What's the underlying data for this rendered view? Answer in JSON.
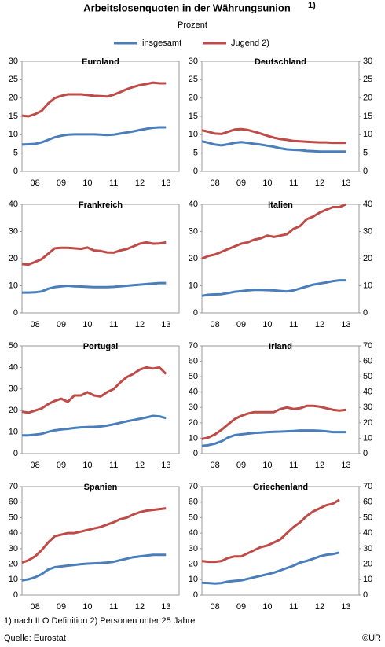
{
  "header": {
    "title": "Arbeitslosenquoten in der Währungsunion",
    "title_note": "1)",
    "subtitle": "Prozent"
  },
  "footer": {
    "note": "1) nach ILO Definition 2) Personen unter 25 Jahre",
    "source": "Quelle: Eurostat",
    "copyright": "©UR"
  },
  "chart_data": [
    {
      "type": "line",
      "title": "Euroland",
      "x": [
        8,
        8.25,
        8.5,
        8.75,
        9,
        9.25,
        9.5,
        9.75,
        10,
        10.25,
        10.5,
        10.75,
        11,
        11.25,
        11.5,
        11.75,
        12,
        12.25,
        12.5,
        12.75,
        13,
        13.25,
        13.5
      ],
      "xlim": [
        8,
        14
      ],
      "xticks": [
        {
          "value": 8.5,
          "label": "08"
        },
        {
          "value": 9.5,
          "label": "09"
        },
        {
          "value": 10.5,
          "label": "10"
        },
        {
          "value": 11.5,
          "label": "11"
        },
        {
          "value": 12.5,
          "label": "12"
        },
        {
          "value": 13.5,
          "label": "13"
        }
      ],
      "ylim": [
        0,
        30
      ],
      "yticks": [
        0,
        5,
        10,
        15,
        20,
        25,
        30
      ],
      "series": [
        {
          "name": "insgesamt",
          "color": "#4a7ebb",
          "values": [
            7.3,
            7.4,
            7.5,
            7.9,
            8.6,
            9.3,
            9.7,
            10.0,
            10.1,
            10.1,
            10.1,
            10.1,
            10.0,
            9.9,
            10.0,
            10.3,
            10.6,
            10.9,
            11.3,
            11.6,
            11.9,
            12.0,
            12.0
          ]
        },
        {
          "name": "Jugend 2)",
          "color": "#be4b48",
          "values": [
            15.2,
            15.0,
            15.6,
            16.5,
            18.5,
            20.0,
            20.6,
            21.0,
            21.0,
            21.0,
            20.8,
            20.6,
            20.5,
            20.4,
            20.9,
            21.6,
            22.4,
            23.0,
            23.5,
            23.8,
            24.2,
            24.0,
            24.0
          ]
        }
      ]
    },
    {
      "type": "line",
      "title": "Deutschland",
      "x": [
        8,
        8.25,
        8.5,
        8.75,
        9,
        9.25,
        9.5,
        9.75,
        10,
        10.25,
        10.5,
        10.75,
        11,
        11.25,
        11.5,
        11.75,
        12,
        12.25,
        12.5,
        12.75,
        13,
        13.25,
        13.5
      ],
      "xlim": [
        8,
        14
      ],
      "xticks": [
        {
          "value": 8.5,
          "label": "08"
        },
        {
          "value": 9.5,
          "label": "09"
        },
        {
          "value": 10.5,
          "label": "10"
        },
        {
          "value": 11.5,
          "label": "11"
        },
        {
          "value": 12.5,
          "label": "12"
        },
        {
          "value": 13.5,
          "label": "13"
        }
      ],
      "ylim": [
        0,
        30
      ],
      "yticks": [
        0,
        5,
        10,
        15,
        20,
        25,
        30
      ],
      "series": [
        {
          "name": "insgesamt",
          "color": "#4a7ebb",
          "values": [
            8.2,
            7.8,
            7.3,
            7.1,
            7.4,
            7.8,
            8.0,
            7.8,
            7.5,
            7.3,
            7.0,
            6.7,
            6.3,
            6.0,
            5.9,
            5.8,
            5.6,
            5.5,
            5.4,
            5.4,
            5.4,
            5.4,
            5.4
          ]
        },
        {
          "name": "Jugend 2)",
          "color": "#be4b48",
          "values": [
            11.2,
            10.8,
            10.3,
            10.2,
            10.8,
            11.4,
            11.5,
            11.3,
            10.8,
            10.3,
            9.7,
            9.2,
            8.8,
            8.6,
            8.3,
            8.2,
            8.1,
            8.0,
            7.9,
            7.9,
            7.8,
            7.8,
            7.8
          ]
        }
      ]
    },
    {
      "type": "line",
      "title": "Frankreich",
      "x": [
        8,
        8.25,
        8.5,
        8.75,
        9,
        9.25,
        9.5,
        9.75,
        10,
        10.25,
        10.5,
        10.75,
        11,
        11.25,
        11.5,
        11.75,
        12,
        12.25,
        12.5,
        12.75,
        13,
        13.25,
        13.5
      ],
      "xlim": [
        8,
        14
      ],
      "xticks": [
        {
          "value": 8.5,
          "label": "08"
        },
        {
          "value": 9.5,
          "label": "09"
        },
        {
          "value": 10.5,
          "label": "10"
        },
        {
          "value": 11.5,
          "label": "11"
        },
        {
          "value": 12.5,
          "label": "12"
        },
        {
          "value": 13.5,
          "label": "13"
        }
      ],
      "ylim": [
        0,
        40
      ],
      "yticks": [
        0,
        10,
        20,
        30,
        40
      ],
      "series": [
        {
          "name": "insgesamt",
          "color": "#4a7ebb",
          "values": [
            7.5,
            7.5,
            7.6,
            7.9,
            8.9,
            9.5,
            9.8,
            10.0,
            9.8,
            9.7,
            9.6,
            9.5,
            9.5,
            9.5,
            9.6,
            9.8,
            10.0,
            10.2,
            10.4,
            10.6,
            10.8,
            11.0,
            11.0
          ]
        },
        {
          "name": "Jugend 2)",
          "color": "#be4b48",
          "values": [
            18,
            17.8,
            18.8,
            19.8,
            21.8,
            23.8,
            24,
            24,
            23.8,
            23.6,
            24.1,
            23,
            22.8,
            22.3,
            22.2,
            23,
            23.5,
            24.5,
            25.5,
            26,
            25.5,
            25.6,
            26
          ]
        }
      ]
    },
    {
      "type": "line",
      "title": "Italien",
      "x": [
        8,
        8.25,
        8.5,
        8.75,
        9,
        9.25,
        9.5,
        9.75,
        10,
        10.25,
        10.5,
        10.75,
        11,
        11.25,
        11.5,
        11.75,
        12,
        12.25,
        12.5,
        12.75,
        13,
        13.25,
        13.5
      ],
      "xlim": [
        8,
        14
      ],
      "xticks": [
        {
          "value": 8.5,
          "label": "08"
        },
        {
          "value": 9.5,
          "label": "09"
        },
        {
          "value": 10.5,
          "label": "10"
        },
        {
          "value": 11.5,
          "label": "11"
        },
        {
          "value": 12.5,
          "label": "12"
        },
        {
          "value": 13.5,
          "label": "13"
        }
      ],
      "ylim": [
        0,
        40
      ],
      "yticks": [
        0,
        10,
        20,
        30,
        40
      ],
      "series": [
        {
          "name": "insgesamt",
          "color": "#4a7ebb",
          "values": [
            6.3,
            6.7,
            6.8,
            6.9,
            7.3,
            7.8,
            8.0,
            8.3,
            8.5,
            8.5,
            8.4,
            8.3,
            8.1,
            7.9,
            8.3,
            9.0,
            9.7,
            10.4,
            10.8,
            11.2,
            11.7,
            12.0,
            12.0
          ]
        },
        {
          "name": "Jugend 2)",
          "color": "#be4b48",
          "values": [
            20,
            21,
            21.5,
            22.5,
            23.5,
            24.5,
            25.5,
            26,
            27,
            27.5,
            28.5,
            28,
            28.5,
            29,
            31,
            32,
            34.5,
            35.5,
            37,
            38,
            39,
            39,
            40
          ]
        }
      ]
    },
    {
      "type": "line",
      "title": "Portugal",
      "x": [
        8,
        8.25,
        8.5,
        8.75,
        9,
        9.25,
        9.5,
        9.75,
        10,
        10.25,
        10.5,
        10.75,
        11,
        11.25,
        11.5,
        11.75,
        12,
        12.25,
        12.5,
        12.75,
        13,
        13.25,
        13.5
      ],
      "xlim": [
        8,
        14
      ],
      "xticks": [
        {
          "value": 8.5,
          "label": "08"
        },
        {
          "value": 9.5,
          "label": "09"
        },
        {
          "value": 10.5,
          "label": "10"
        },
        {
          "value": 11.5,
          "label": "11"
        },
        {
          "value": 12.5,
          "label": "12"
        },
        {
          "value": 13.5,
          "label": "13"
        }
      ],
      "ylim": [
        0,
        50
      ],
      "yticks": [
        0,
        10,
        20,
        30,
        40,
        50
      ],
      "series": [
        {
          "name": "insgesamt",
          "color": "#4a7ebb",
          "values": [
            8.5,
            8.5,
            8.8,
            9.2,
            10.1,
            10.8,
            11.2,
            11.5,
            11.9,
            12.2,
            12.3,
            12.4,
            12.6,
            13.0,
            13.6,
            14.3,
            15.0,
            15.6,
            16.2,
            16.8,
            17.5,
            17.3,
            16.5
          ]
        },
        {
          "name": "Jugend 2)",
          "color": "#be4b48",
          "values": [
            19.5,
            19,
            20,
            21,
            23,
            24.5,
            25.5,
            24,
            27,
            27,
            28.5,
            27,
            26.5,
            28.5,
            30,
            33,
            35.5,
            37,
            39,
            40,
            39.5,
            40,
            37
          ]
        }
      ]
    },
    {
      "type": "line",
      "title": "Irland",
      "x": [
        8,
        8.25,
        8.5,
        8.75,
        9,
        9.25,
        9.5,
        9.75,
        10,
        10.25,
        10.5,
        10.75,
        11,
        11.25,
        11.5,
        11.75,
        12,
        12.25,
        12.5,
        12.75,
        13,
        13.25,
        13.5
      ],
      "xlim": [
        8,
        14
      ],
      "xticks": [
        {
          "value": 8.5,
          "label": "08"
        },
        {
          "value": 9.5,
          "label": "09"
        },
        {
          "value": 10.5,
          "label": "10"
        },
        {
          "value": 11.5,
          "label": "11"
        },
        {
          "value": 12.5,
          "label": "12"
        },
        {
          "value": 13.5,
          "label": "13"
        }
      ],
      "ylim": [
        0,
        70
      ],
      "yticks": [
        0,
        10,
        20,
        30,
        40,
        50,
        60,
        70
      ],
      "series": [
        {
          "name": "insgesamt",
          "color": "#4a7ebb",
          "values": [
            5,
            5.5,
            6.5,
            8,
            10.5,
            12,
            12.5,
            13,
            13.5,
            13.7,
            14,
            14.2,
            14.3,
            14.5,
            14.7,
            15,
            15,
            15,
            14.8,
            14.5,
            14,
            14,
            14
          ]
        },
        {
          "name": "Jugend 2)",
          "color": "#be4b48",
          "values": [
            9.5,
            10.5,
            12.5,
            15.5,
            19,
            22.5,
            24.5,
            26,
            27,
            27,
            27,
            27,
            29,
            30,
            29,
            29.5,
            31,
            31,
            30.5,
            29.5,
            28.5,
            28,
            28.5
          ]
        }
      ]
    },
    {
      "type": "line",
      "title": "Spanien",
      "x": [
        8,
        8.25,
        8.5,
        8.75,
        9,
        9.25,
        9.5,
        9.75,
        10,
        10.25,
        10.5,
        10.75,
        11,
        11.25,
        11.5,
        11.75,
        12,
        12.25,
        12.5,
        12.75,
        13,
        13.25,
        13.5
      ],
      "xlim": [
        8,
        14
      ],
      "xticks": [
        {
          "value": 8.5,
          "label": "08"
        },
        {
          "value": 9.5,
          "label": "09"
        },
        {
          "value": 10.5,
          "label": "10"
        },
        {
          "value": 11.5,
          "label": "11"
        },
        {
          "value": 12.5,
          "label": "12"
        },
        {
          "value": 13.5,
          "label": "13"
        }
      ],
      "ylim": [
        0,
        70
      ],
      "yticks": [
        0,
        10,
        20,
        30,
        40,
        50,
        60,
        70
      ],
      "series": [
        {
          "name": "insgesamt",
          "color": "#4a7ebb",
          "values": [
            9.5,
            10.2,
            11.5,
            13.5,
            16.5,
            18,
            18.5,
            19,
            19.5,
            20,
            20.3,
            20.5,
            20.7,
            21,
            21.5,
            22.5,
            23.5,
            24.5,
            25,
            25.5,
            26,
            26,
            26
          ]
        },
        {
          "name": "Jugend 2)",
          "color": "#be4b48",
          "values": [
            21,
            22.5,
            25,
            29,
            34,
            38,
            39,
            40,
            40,
            41,
            42,
            43,
            44,
            45.5,
            47,
            49,
            50,
            52,
            53.5,
            54.5,
            55,
            55.5,
            56
          ]
        }
      ]
    },
    {
      "type": "line",
      "title": "Griechenland",
      "x": [
        8,
        8.25,
        8.5,
        8.75,
        9,
        9.25,
        9.5,
        9.75,
        10,
        10.25,
        10.5,
        10.75,
        11,
        11.25,
        11.5,
        11.75,
        12,
        12.25,
        12.5,
        12.75,
        13,
        13.25,
        13.5
      ],
      "xlim": [
        8,
        14
      ],
      "xticks": [
        {
          "value": 8.5,
          "label": "08"
        },
        {
          "value": 9.5,
          "label": "09"
        },
        {
          "value": 10.5,
          "label": "10"
        },
        {
          "value": 11.5,
          "label": "11"
        },
        {
          "value": 12.5,
          "label": "12"
        },
        {
          "value": 13.5,
          "label": "13"
        }
      ],
      "ylim": [
        0,
        70
      ],
      "yticks": [
        0,
        10,
        20,
        30,
        40,
        50,
        60,
        70
      ],
      "series": [
        {
          "name": "insgesamt",
          "color": "#4a7ebb",
          "values": [
            8,
            7.8,
            7.5,
            7.8,
            8.8,
            9.2,
            9.5,
            10.5,
            11.5,
            12.5,
            13.5,
            14.5,
            16,
            17.5,
            19,
            21,
            22,
            23.5,
            25,
            26,
            26.5,
            27.5,
            null
          ]
        },
        {
          "name": "Jugend 2)",
          "color": "#be4b48",
          "values": [
            22,
            21.5,
            21.5,
            22,
            24,
            25,
            25,
            27,
            29,
            31,
            32,
            34,
            36,
            40,
            44,
            47,
            51,
            54,
            56,
            58,
            59,
            61.5,
            null
          ]
        }
      ]
    }
  ]
}
